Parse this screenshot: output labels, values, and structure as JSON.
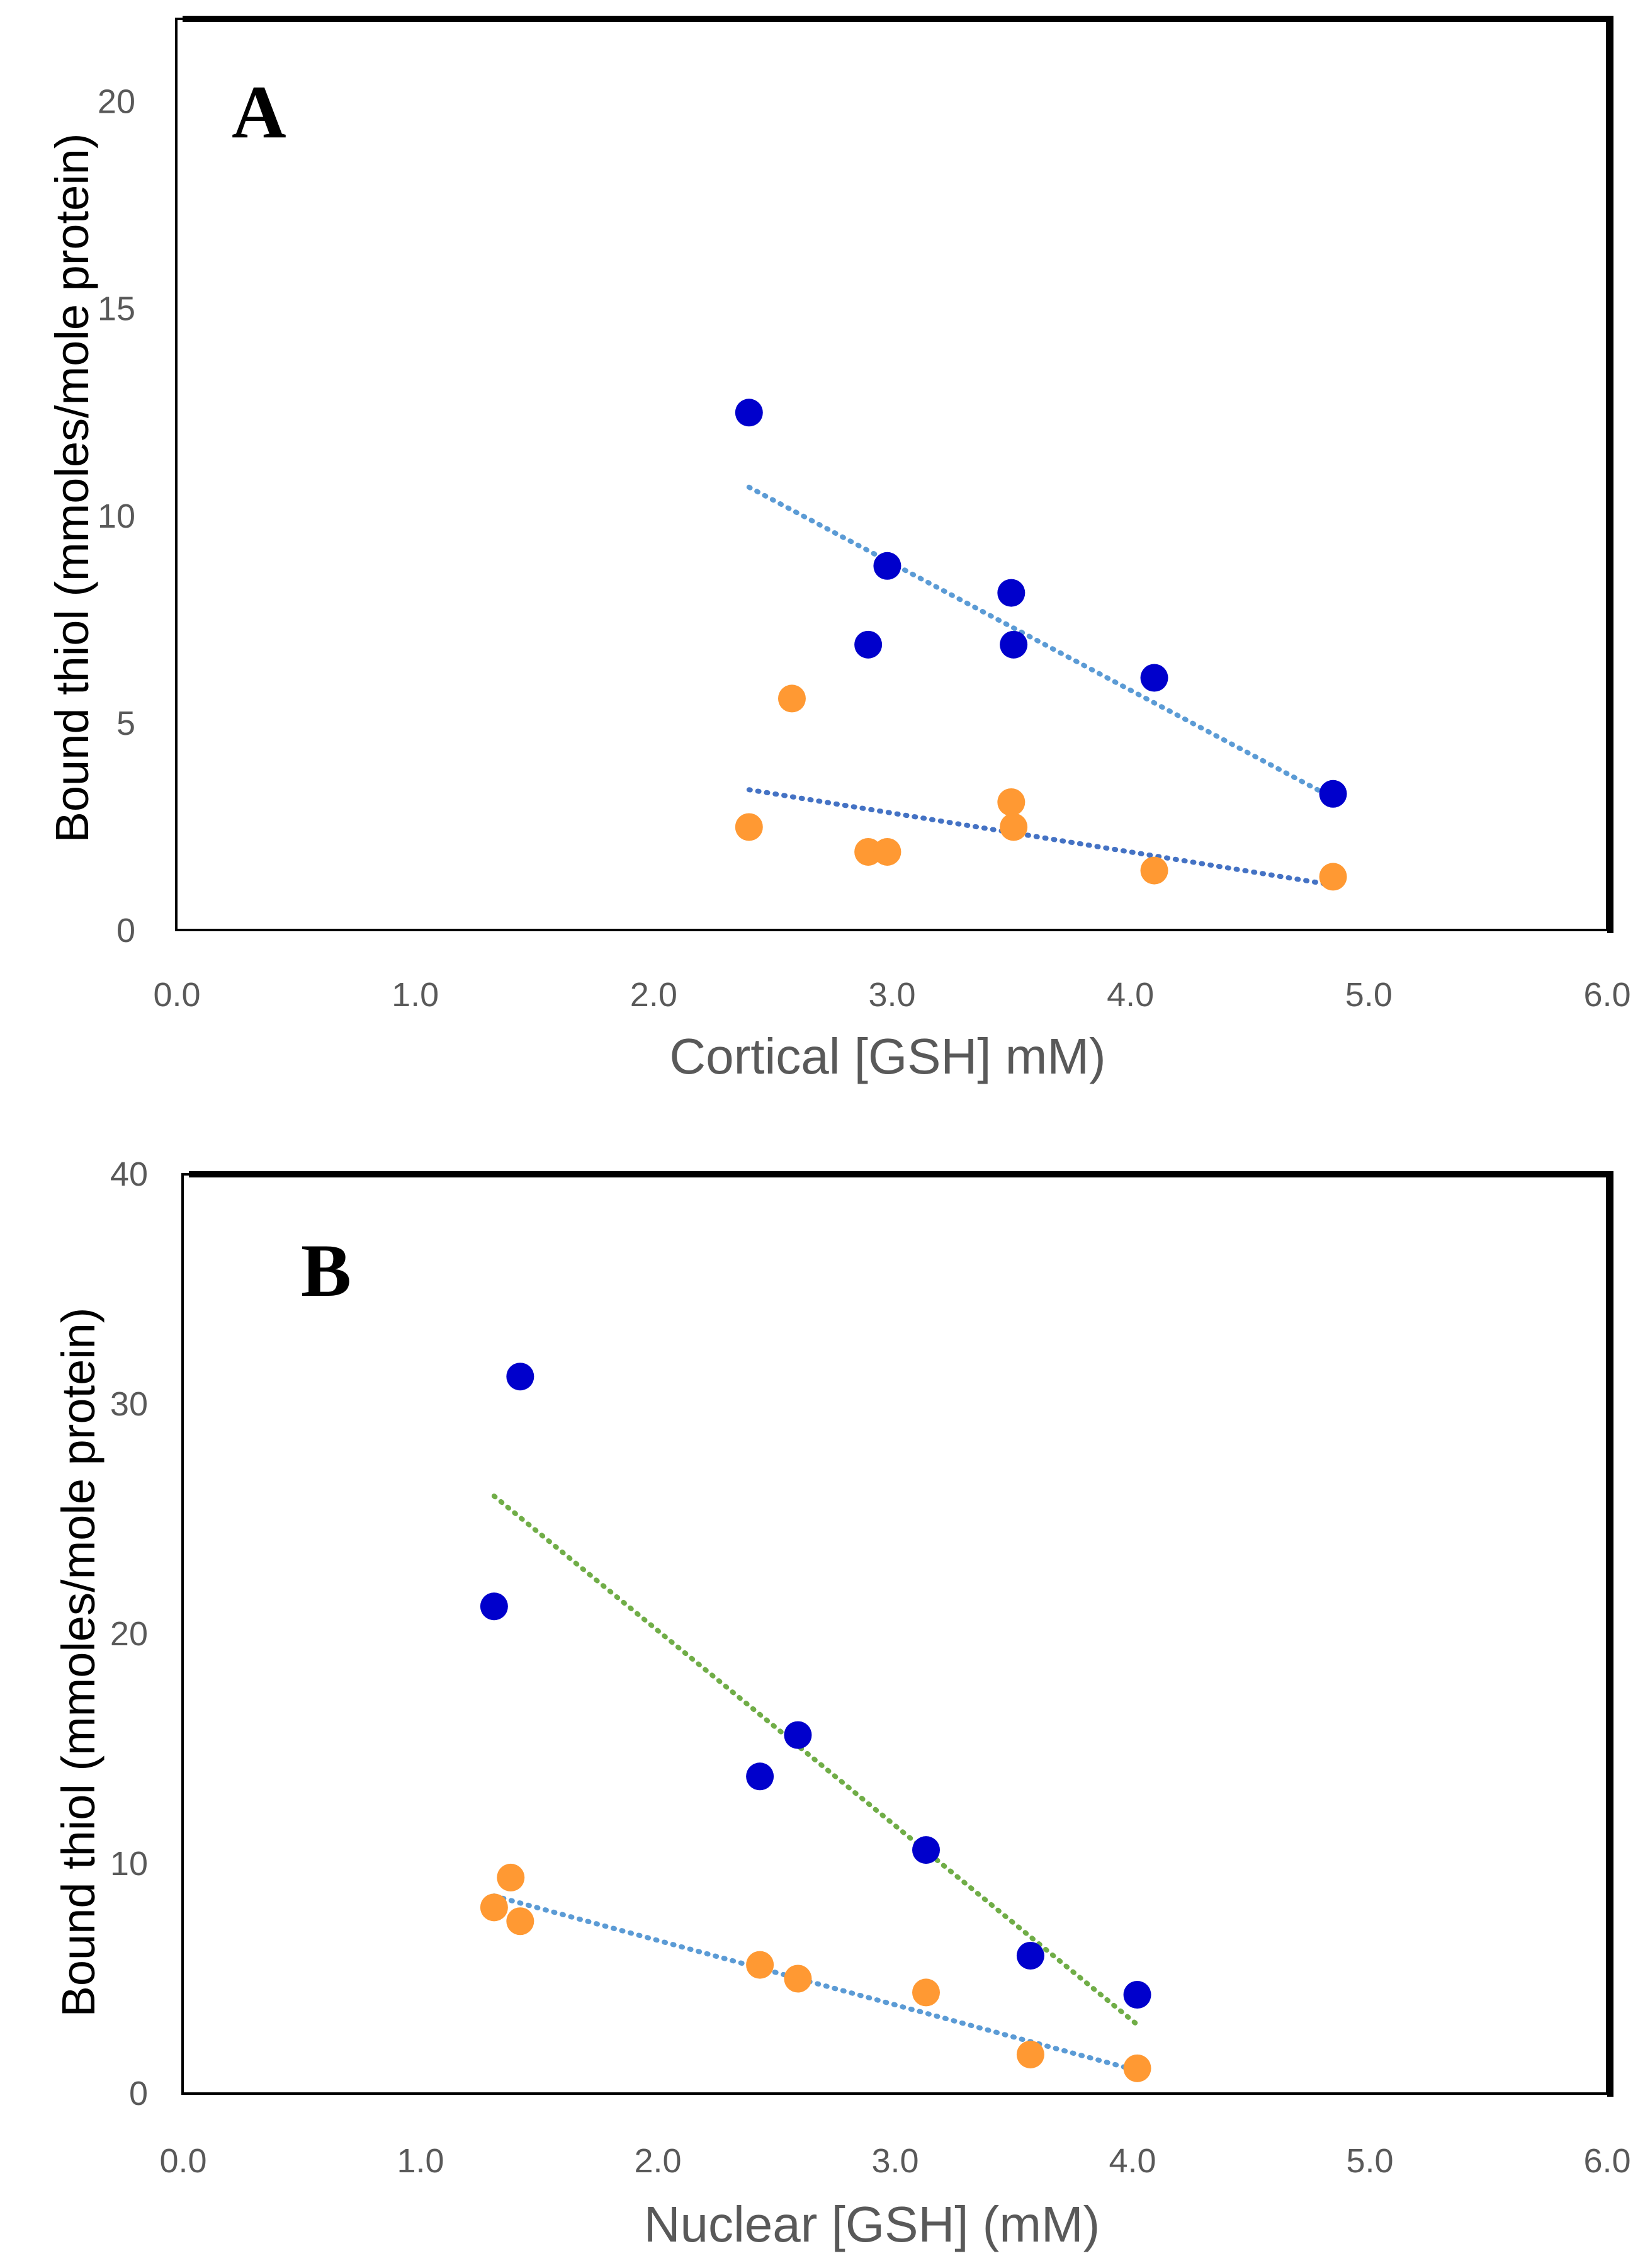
{
  "colors": {
    "series_blue": "#0000cc",
    "series_orange": "#ff9933",
    "trend_light_blue": "#5b9bd5",
    "trend_dark_blue": "#4472c4",
    "trend_green": "#70ad47",
    "axis_text": "#595959"
  },
  "chart_data": [
    {
      "type": "scatter",
      "panel_label": "A",
      "xlabel": "Cortical [GSH] mM)",
      "ylabel": "Bound thiol (mmoles/mole protein)",
      "xlim": [
        0,
        6
      ],
      "ylim": [
        0,
        22
      ],
      "x_ticks": [
        "0.0",
        "1.0",
        "2.0",
        "3.0",
        "4.0",
        "5.0",
        "6.0"
      ],
      "y_ticks": [
        "0",
        "5",
        "10",
        "15",
        "20"
      ],
      "series": [
        {
          "name": "series-1",
          "color": "#0000cc",
          "x": [
            2.4,
            2.9,
            2.98,
            3.5,
            3.51,
            4.1,
            4.85
          ],
          "y": [
            12.5,
            6.9,
            8.8,
            8.15,
            6.9,
            6.1,
            3.3
          ]
        },
        {
          "name": "series-2",
          "color": "#ff9933",
          "x": [
            2.4,
            2.58,
            2.9,
            2.98,
            3.5,
            3.51,
            4.1,
            4.85
          ],
          "y": [
            2.5,
            5.6,
            1.9,
            1.9,
            3.1,
            2.5,
            1.45,
            1.3
          ]
        }
      ],
      "trendlines": [
        {
          "name": "trend-1",
          "color": "#5b9bd5",
          "x": [
            2.4,
            4.85
          ],
          "y": [
            10.7,
            3.2
          ]
        },
        {
          "name": "trend-2",
          "color": "#4472c4",
          "x": [
            2.4,
            4.85
          ],
          "y": [
            3.4,
            1.1
          ]
        }
      ]
    },
    {
      "type": "scatter",
      "panel_label": "B",
      "xlabel": "Nuclear [GSH] (mM)",
      "ylabel": "Bound thiol (mmoles/mole protein)",
      "xlim": [
        0,
        6
      ],
      "ylim": [
        0,
        40
      ],
      "x_ticks": [
        "0.0",
        "1.0",
        "2.0",
        "3.0",
        "4.0",
        "5.0",
        "6.0"
      ],
      "y_ticks": [
        "0",
        "10",
        "20",
        "30",
        "40"
      ],
      "series": [
        {
          "name": "series-1",
          "color": "#0000cc",
          "x": [
            1.31,
            1.42,
            2.43,
            2.59,
            3.13,
            3.57,
            4.02
          ],
          "y": [
            21.2,
            31.2,
            13.8,
            15.6,
            10.6,
            6.0,
            4.3
          ]
        },
        {
          "name": "series-2",
          "color": "#ff9933",
          "x": [
            1.31,
            1.38,
            1.42,
            2.43,
            2.59,
            3.13,
            3.57,
            4.02
          ],
          "y": [
            8.1,
            9.4,
            7.5,
            5.6,
            5.0,
            4.4,
            1.7,
            1.1
          ]
        }
      ],
      "trendlines": [
        {
          "name": "trend-1",
          "color": "#70ad47",
          "x": [
            1.31,
            4.02
          ],
          "y": [
            26.0,
            3.0
          ]
        },
        {
          "name": "trend-2",
          "color": "#5b9bd5",
          "x": [
            1.31,
            4.02
          ],
          "y": [
            8.6,
            1.0
          ]
        }
      ]
    }
  ]
}
